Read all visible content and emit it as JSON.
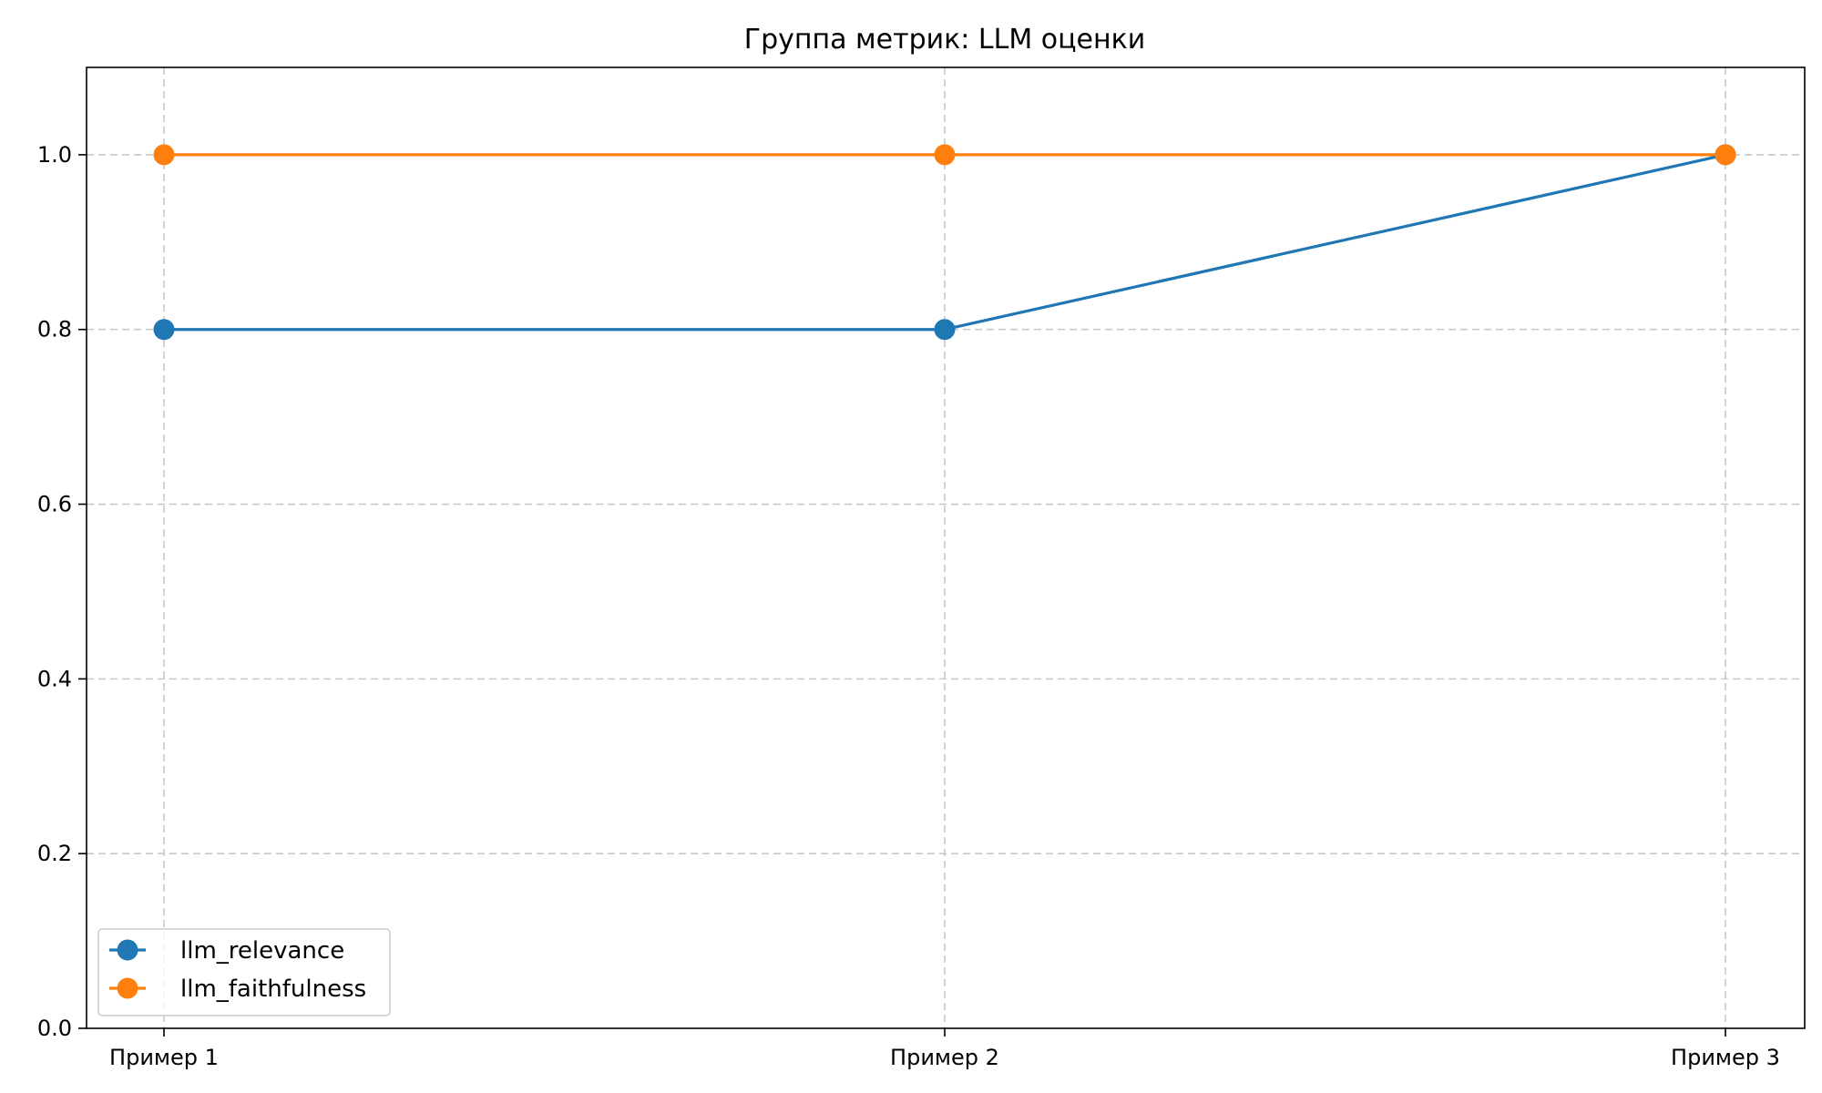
{
  "chart_data": {
    "type": "line",
    "title": "Группа метрик: LLM оценки",
    "xlabel": "",
    "ylabel": "",
    "categories": [
      "Пример 1",
      "Пример 2",
      "Пример 3"
    ],
    "series": [
      {
        "name": "llm_relevance",
        "values": [
          0.8,
          0.8,
          1.0
        ],
        "color": "#1f77b4",
        "marker": "circle"
      },
      {
        "name": "llm_faithfulness",
        "values": [
          1.0,
          1.0,
          1.0
        ],
        "color": "#ff7f0e",
        "marker": "circle"
      }
    ],
    "ylim": [
      0,
      1.1
    ],
    "yticks": [
      "0.0",
      "0.2",
      "0.4",
      "0.6",
      "0.8",
      "1.0"
    ],
    "grid": true,
    "legend_position": "lower-left"
  }
}
